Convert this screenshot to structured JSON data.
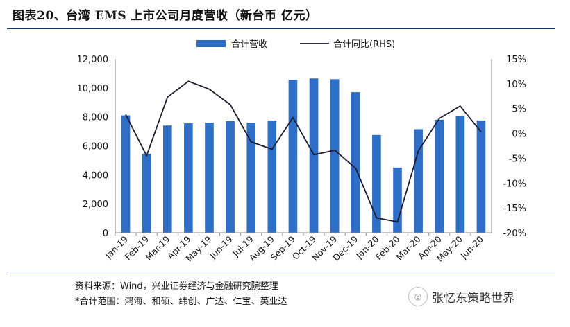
{
  "header": {
    "title": "图表20、台湾 EMS 上市公司月度营收（新台币 亿元）"
  },
  "footer": {
    "source": "资料来源：Wind，兴业证券经济与金融研究院整理",
    "note": "*合计范围：鸿海、和硕、纬创、广达、仁宝、英业达"
  },
  "watermark": {
    "text": "张忆东策略世界",
    "icon": "wechat-icon"
  },
  "colors": {
    "bar": "#2f6ec6",
    "line": "#1c1c2e",
    "rule": "#1f3864"
  },
  "chart_data": {
    "type": "bar",
    "title": "",
    "categories": [
      "Jan-19",
      "Feb-19",
      "Mar-19",
      "Apr-19",
      "May-19",
      "Jun-19",
      "Jul-19",
      "Aug-19",
      "Sep-19",
      "Oct-19",
      "Nov-19",
      "Dec-19",
      "Jan-20",
      "Feb-20",
      "Mar-20",
      "Apr-20",
      "May-20",
      "Jun-20"
    ],
    "series": [
      {
        "name": "合计营收",
        "type": "bar",
        "axis": "left",
        "values": [
          8100,
          5450,
          7400,
          7550,
          7600,
          7700,
          7600,
          7750,
          10550,
          10650,
          10600,
          9700,
          6750,
          4500,
          7150,
          7800,
          8050,
          7750
        ]
      },
      {
        "name": "合计同比(RHS)",
        "type": "line",
        "axis": "right",
        "values": [
          3.8,
          -4.5,
          7.3,
          10.5,
          8.9,
          5.8,
          -1.7,
          -3.2,
          3.2,
          -4.3,
          -3.4,
          -7.0,
          -17.0,
          -17.8,
          -3.5,
          3.0,
          5.5,
          0.3
        ]
      }
    ],
    "y_left": {
      "min": 0,
      "max": 12000,
      "ticks": [
        "0",
        "2,000",
        "4,000",
        "6,000",
        "8,000",
        "10,000",
        "12,000"
      ]
    },
    "y_right": {
      "min": -20,
      "max": 15,
      "ticks": [
        "-20%",
        "-15%",
        "-10%",
        "-5%",
        "0%",
        "5%",
        "10%",
        "15%"
      ]
    },
    "grid": false,
    "legend": "top"
  }
}
